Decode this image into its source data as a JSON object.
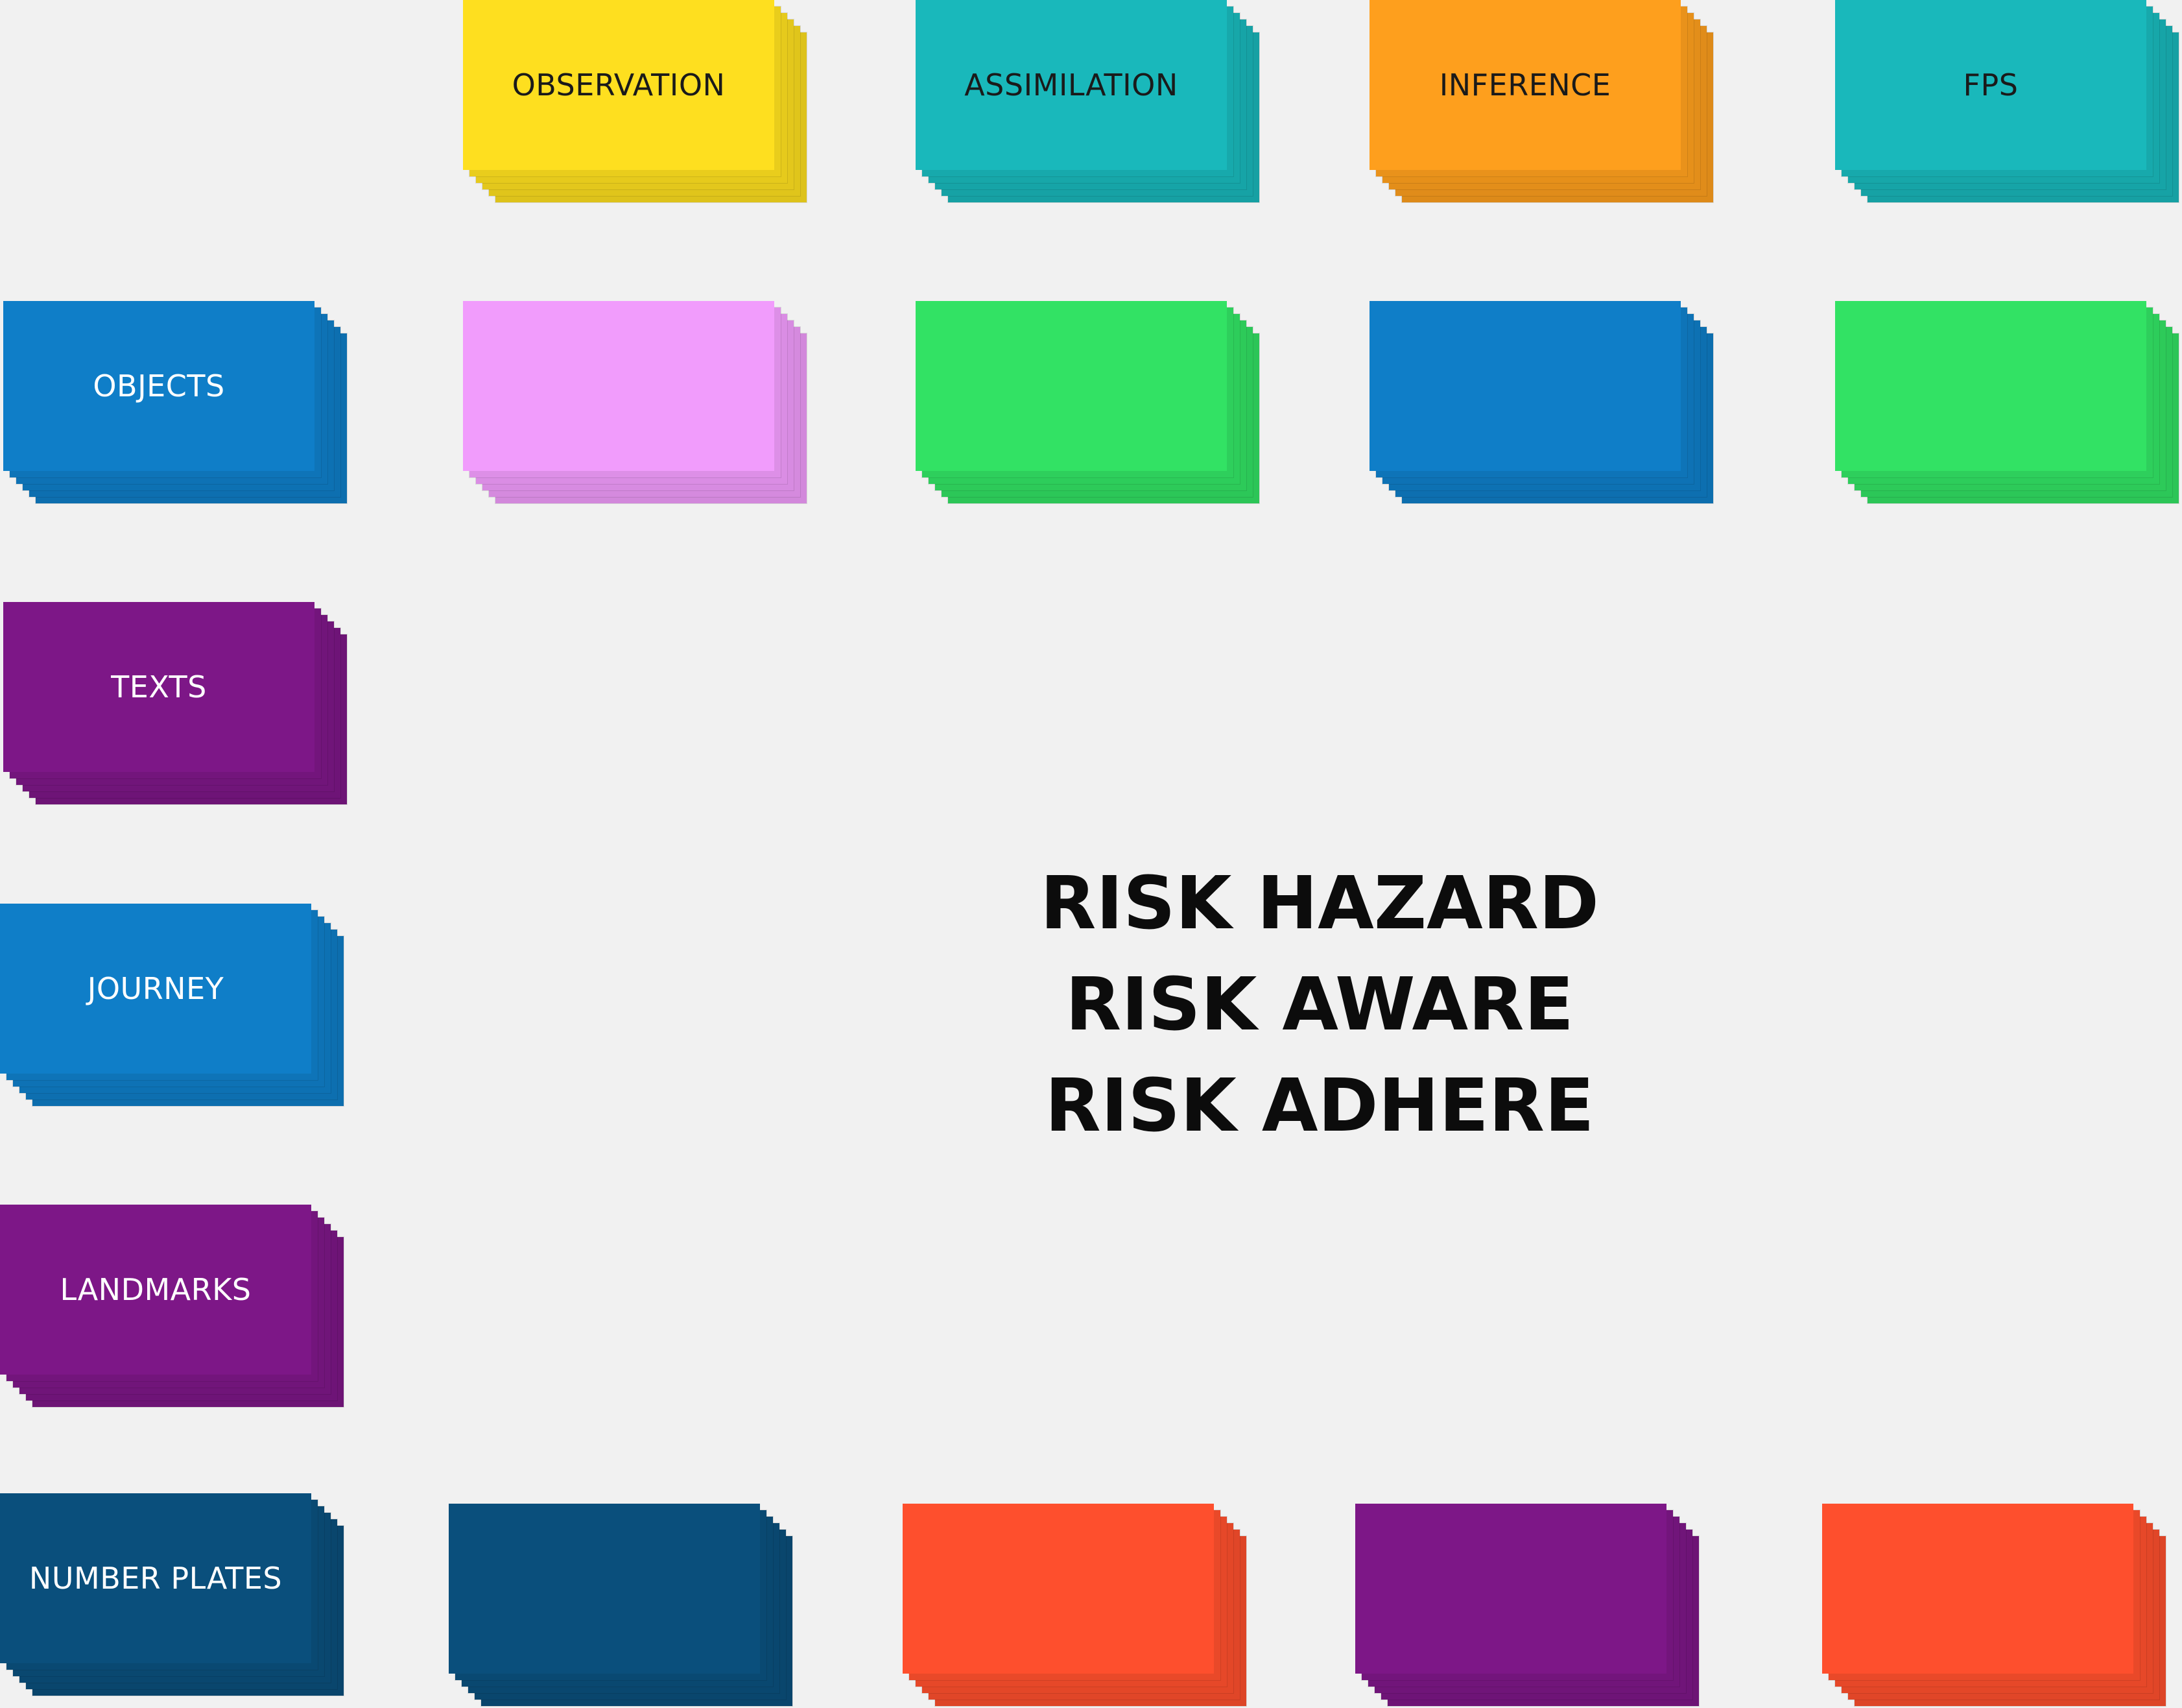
{
  "title_lines": [
    "RISK HAZARD",
    "RISK AWARE",
    "RISK ADHERE"
  ],
  "top_row": [
    {
      "label": "OBSERVATION",
      "color": "#fedf1f",
      "text_color": "#1a1a1a"
    },
    {
      "label": "ASSIMILATION",
      "color": "#19b8bb",
      "text_color": "#1a1a1a"
    },
    {
      "label": "INFERENCE",
      "color": "#fe9f1d",
      "text_color": "#1a1a1a"
    },
    {
      "label": "FPS",
      "color": "#19b8bb",
      "text_color": "#1a1a1a"
    }
  ],
  "second_row": [
    {
      "label": "",
      "color": "#f19cfc"
    },
    {
      "label": "",
      "color": "#32e264"
    },
    {
      "label": "",
      "color": "#0f7ec8"
    },
    {
      "label": "",
      "color": "#32e264"
    }
  ],
  "left_column": [
    {
      "label": "OBJECTS",
      "color": "#0f7ec8",
      "text_color": "#ffffff"
    },
    {
      "label": "TEXTS",
      "color": "#7d1787",
      "text_color": "#ffffff"
    },
    {
      "label": "JOURNEY",
      "color": "#0f7ec8",
      "text_color": "#ffffff"
    },
    {
      "label": "LANDMARKS",
      "color": "#7d1787",
      "text_color": "#ffffff"
    },
    {
      "label": "NUMBER PLATES",
      "color": "#0a4f7c",
      "text_color": "#ffffff"
    }
  ],
  "bottom_row": [
    {
      "label": "",
      "color": "#0a4f7c"
    },
    {
      "label": "",
      "color": "#fe4f2d"
    },
    {
      "label": "",
      "color": "#7d1787"
    },
    {
      "label": "",
      "color": "#fe4f2d"
    }
  ]
}
